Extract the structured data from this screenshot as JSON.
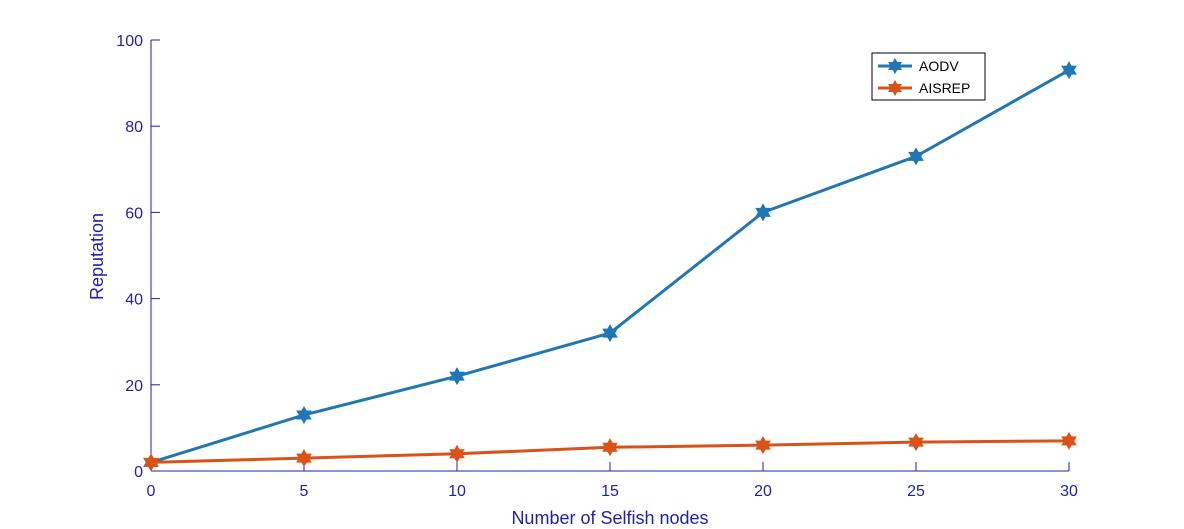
{
  "chart_data": {
    "type": "line",
    "xlabel": "Number of Selfish nodes",
    "ylabel": "Reputation",
    "x": [
      0,
      5,
      10,
      15,
      20,
      25,
      30
    ],
    "xlim": [
      0,
      30
    ],
    "ylim": [
      0,
      100
    ],
    "xticks": [
      0,
      5,
      10,
      15,
      20,
      25,
      30
    ],
    "yticks": [
      0,
      20,
      40,
      60,
      80,
      100
    ],
    "grid": false,
    "legend_position": "top-right",
    "marker": "hexagram-star",
    "series": [
      {
        "name": "AODV",
        "color": "#1f77b4",
        "values": [
          2,
          13,
          22,
          32,
          60,
          73,
          93
        ]
      },
      {
        "name": "AISREP",
        "color": "#d95319",
        "values": [
          2,
          3,
          4,
          5.5,
          6,
          6.7,
          7
        ]
      }
    ],
    "colors": {
      "axis": "#1f1fa8"
    }
  }
}
